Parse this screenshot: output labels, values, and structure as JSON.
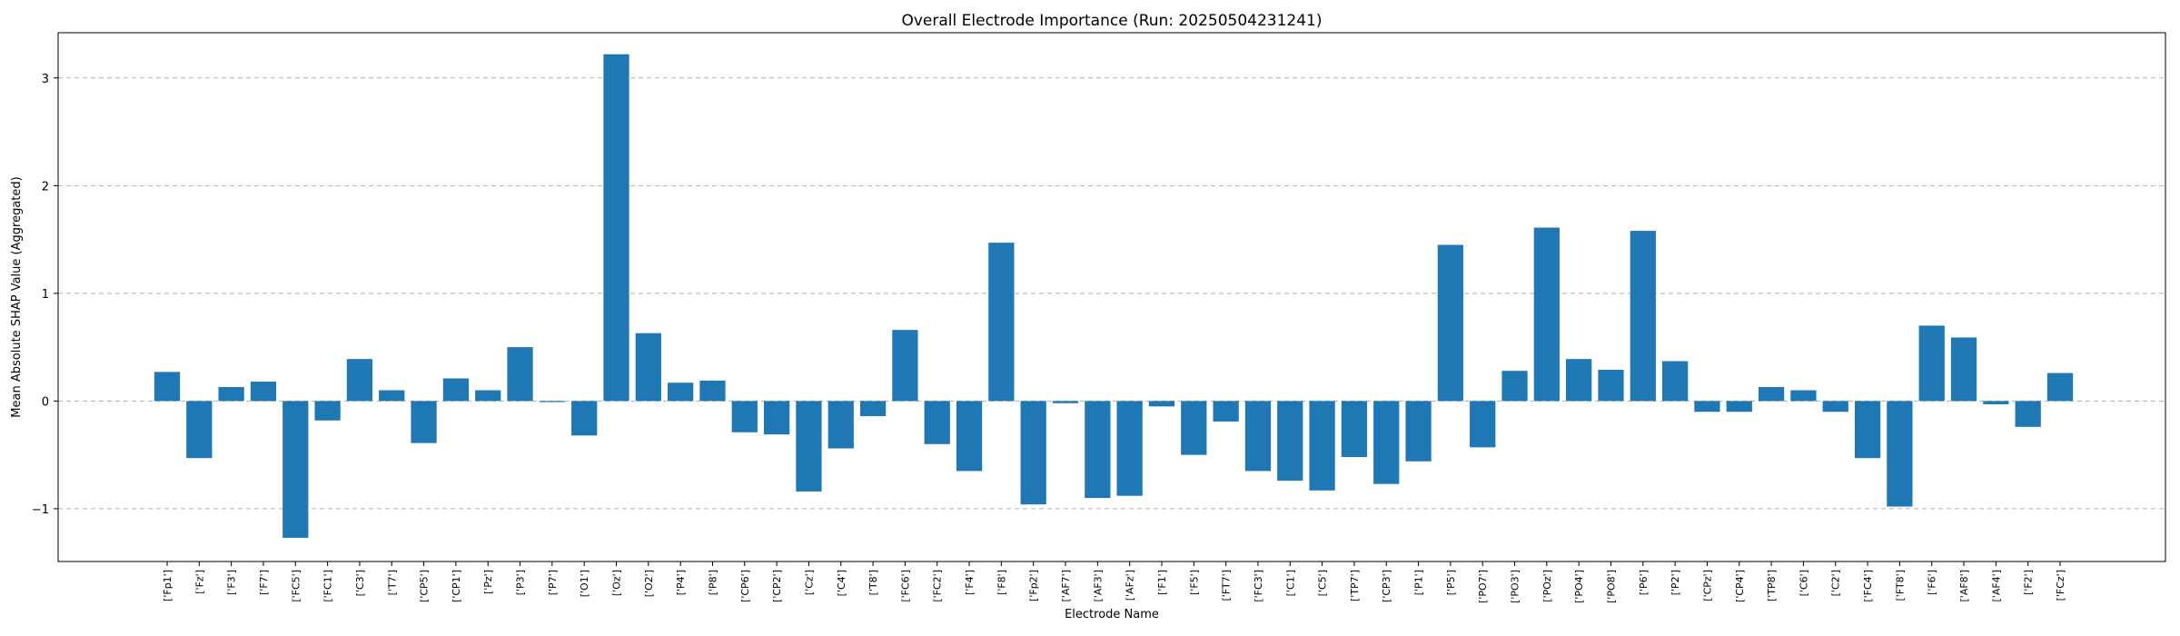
{
  "chart_data": {
    "type": "bar",
    "title": "Overall Electrode Importance (Run: 20250504231241)",
    "xlabel": "Electrode Name",
    "ylabel": "Mean Absolute SHAP Value (Aggregated)",
    "ylim": [
      -1.49,
      3.42
    ],
    "yticks": [
      -1,
      0,
      1,
      2,
      3
    ],
    "ytick_labels": [
      "−1",
      "0",
      "1",
      "2",
      "3"
    ],
    "grid": "y-dashed",
    "bar_color": "#1f77b4",
    "categories": [
      "['Fp1']",
      "['Fz']",
      "['F3']",
      "['F7']",
      "['FC5']",
      "['FC1']",
      "['C3']",
      "['T7']",
      "['CP5']",
      "['CP1']",
      "['Pz']",
      "['P3']",
      "['P7']",
      "['O1']",
      "['Oz']",
      "['O2']",
      "['P4']",
      "['P8']",
      "['CP6']",
      "['CP2']",
      "['Cz']",
      "['C4']",
      "['T8']",
      "['FC6']",
      "['FC2']",
      "['F4']",
      "['F8']",
      "['Fp2']",
      "['AF7']",
      "['AF3']",
      "['AFz']",
      "['F1']",
      "['F5']",
      "['FT7']",
      "['FC3']",
      "['C1']",
      "['C5']",
      "['TP7']",
      "['CP3']",
      "['P1']",
      "['P5']",
      "['PO7']",
      "['PO3']",
      "['POz']",
      "['PO4']",
      "['PO8']",
      "['P6']",
      "['P2']",
      "['CPz']",
      "['CP4']",
      "['TP8']",
      "['C6']",
      "['C2']",
      "['FC4']",
      "['FT8']",
      "['F6']",
      "['AF8']",
      "['AF4']",
      "['F2']",
      "['FCz']"
    ],
    "values": [
      0.27,
      -0.53,
      0.13,
      0.18,
      -1.27,
      -0.18,
      0.39,
      0.1,
      -0.39,
      0.21,
      0.1,
      0.5,
      -0.01,
      -0.32,
      3.22,
      0.63,
      0.17,
      0.19,
      -0.29,
      -0.31,
      -0.84,
      -0.44,
      -0.14,
      0.66,
      -0.4,
      -0.65,
      1.47,
      -0.96,
      -0.02,
      -0.9,
      -0.88,
      -0.05,
      -0.5,
      -0.19,
      -0.65,
      -0.74,
      -0.83,
      -0.52,
      -0.77,
      -0.56,
      1.45,
      -0.43,
      0.28,
      1.61,
      0.39,
      0.29,
      1.58,
      0.37,
      -0.1,
      -0.1,
      0.13,
      0.1,
      -0.1,
      -0.53,
      -0.98,
      0.7,
      0.59,
      -0.03,
      -0.24,
      0.26
    ]
  }
}
